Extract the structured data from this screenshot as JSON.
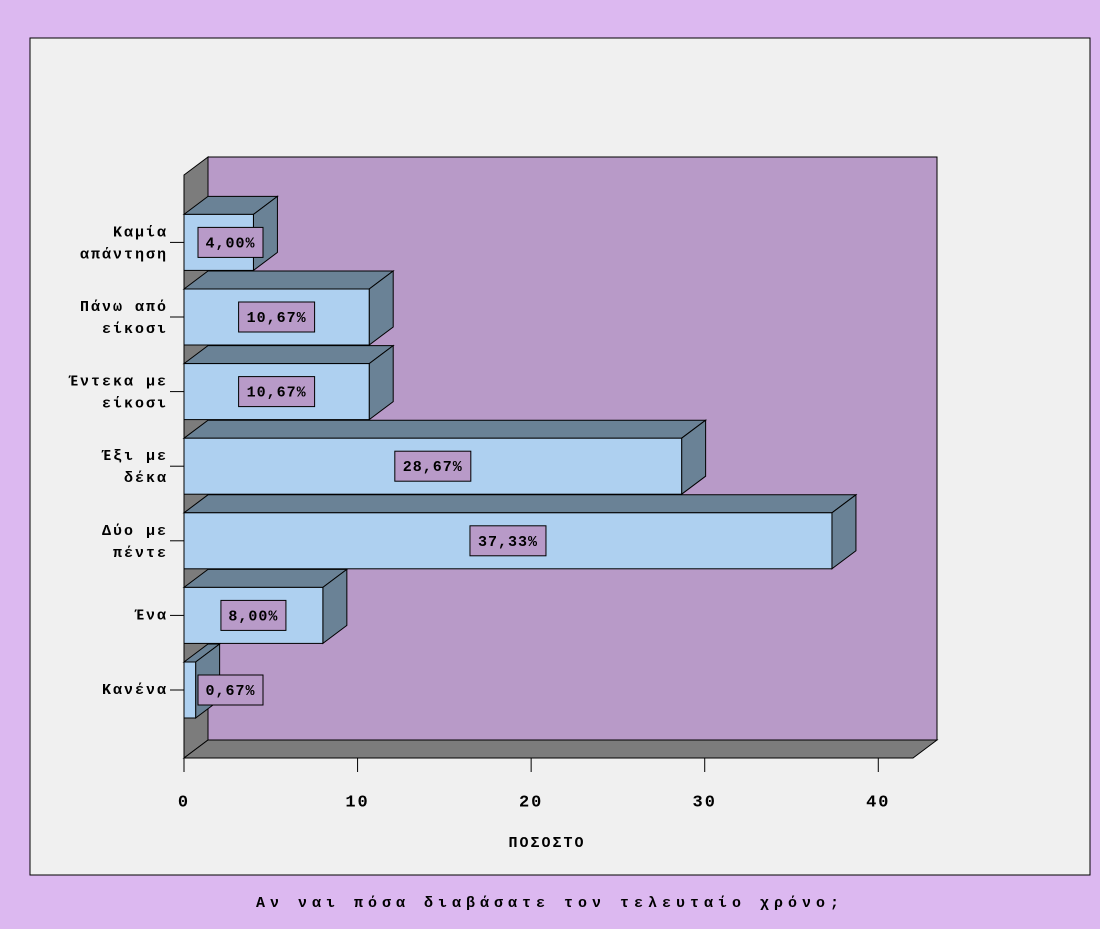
{
  "chart_data": {
    "type": "bar3d_horizontal",
    "title": "Αν ναι πόσα διαβάσατε τον τελευταίο χρόνο;",
    "x_label": "ΠΟΣΟΣΤΟ",
    "categories": [
      "Κανένα",
      "Ένα",
      "Δύο με πέντε",
      "Έξι με δέκα",
      "Έντεκα με είκοσι",
      "Πάνω από είκοσι",
      "Καμία απάντηση"
    ],
    "values": [
      0.67,
      8.0,
      37.33,
      28.67,
      10.67,
      10.67,
      4.0
    ],
    "value_labels": [
      "0,67%",
      "8,00%",
      "37,33%",
      "28,67%",
      "10,67%",
      "10,67%",
      "4,00%"
    ],
    "color": "#aed0f0",
    "xlim": [
      0,
      42
    ],
    "xticks": [
      0,
      10,
      20,
      30,
      40
    ]
  }
}
